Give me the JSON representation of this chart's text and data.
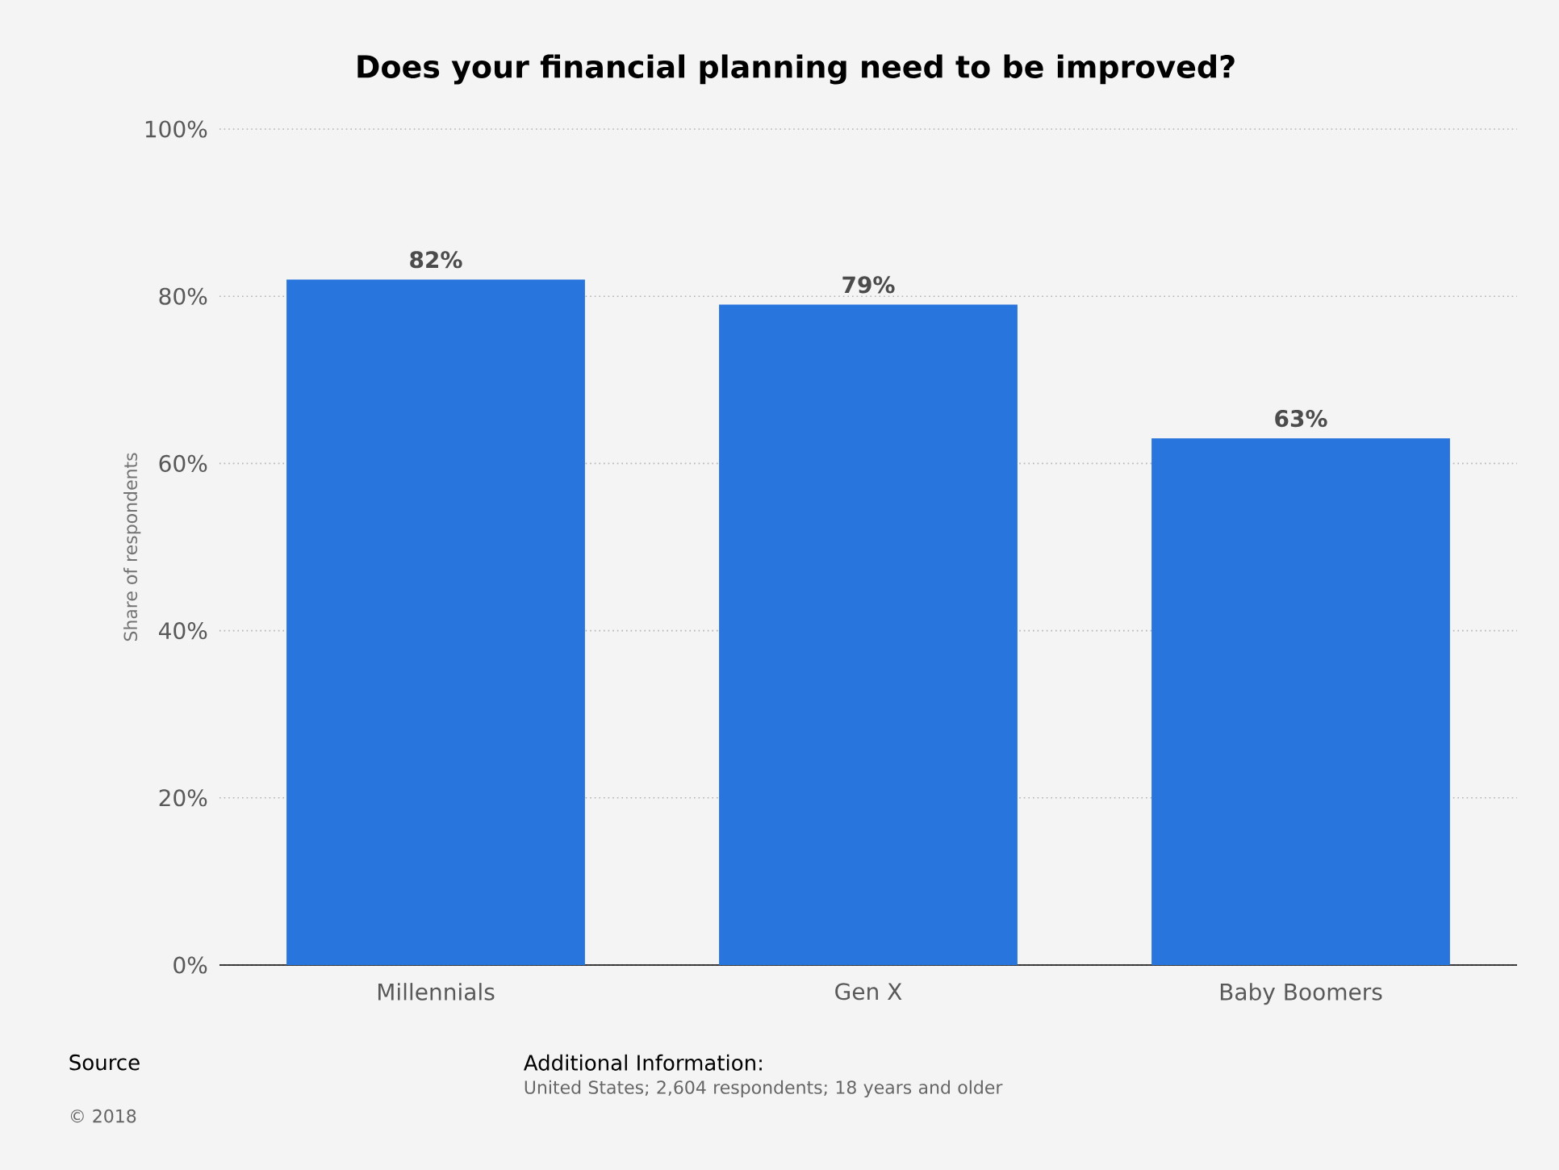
{
  "chart_data": {
    "type": "bar",
    "title": "Does your financial planning need to be improved?",
    "categories": [
      "Millennials",
      "Gen X",
      "Baby Boomers"
    ],
    "values": [
      82,
      79,
      63
    ],
    "value_labels": [
      "82%",
      "79%",
      "63%"
    ],
    "color": "#2876dd",
    "ylabel": "Share of respondents",
    "ylim": [
      0,
      100
    ],
    "yticks": [
      {
        "value": 0,
        "label": "0%"
      },
      {
        "value": 20,
        "label": "20%"
      },
      {
        "value": 40,
        "label": "40%"
      },
      {
        "value": 60,
        "label": "60%"
      },
      {
        "value": 80,
        "label": "80%"
      },
      {
        "value": 100,
        "label": "100%"
      }
    ],
    "grid": "y",
    "annotations": [
      "Source",
      "© 2018",
      "Additional Information:",
      "United States; 2,604 respondents; 18 years and older"
    ]
  }
}
